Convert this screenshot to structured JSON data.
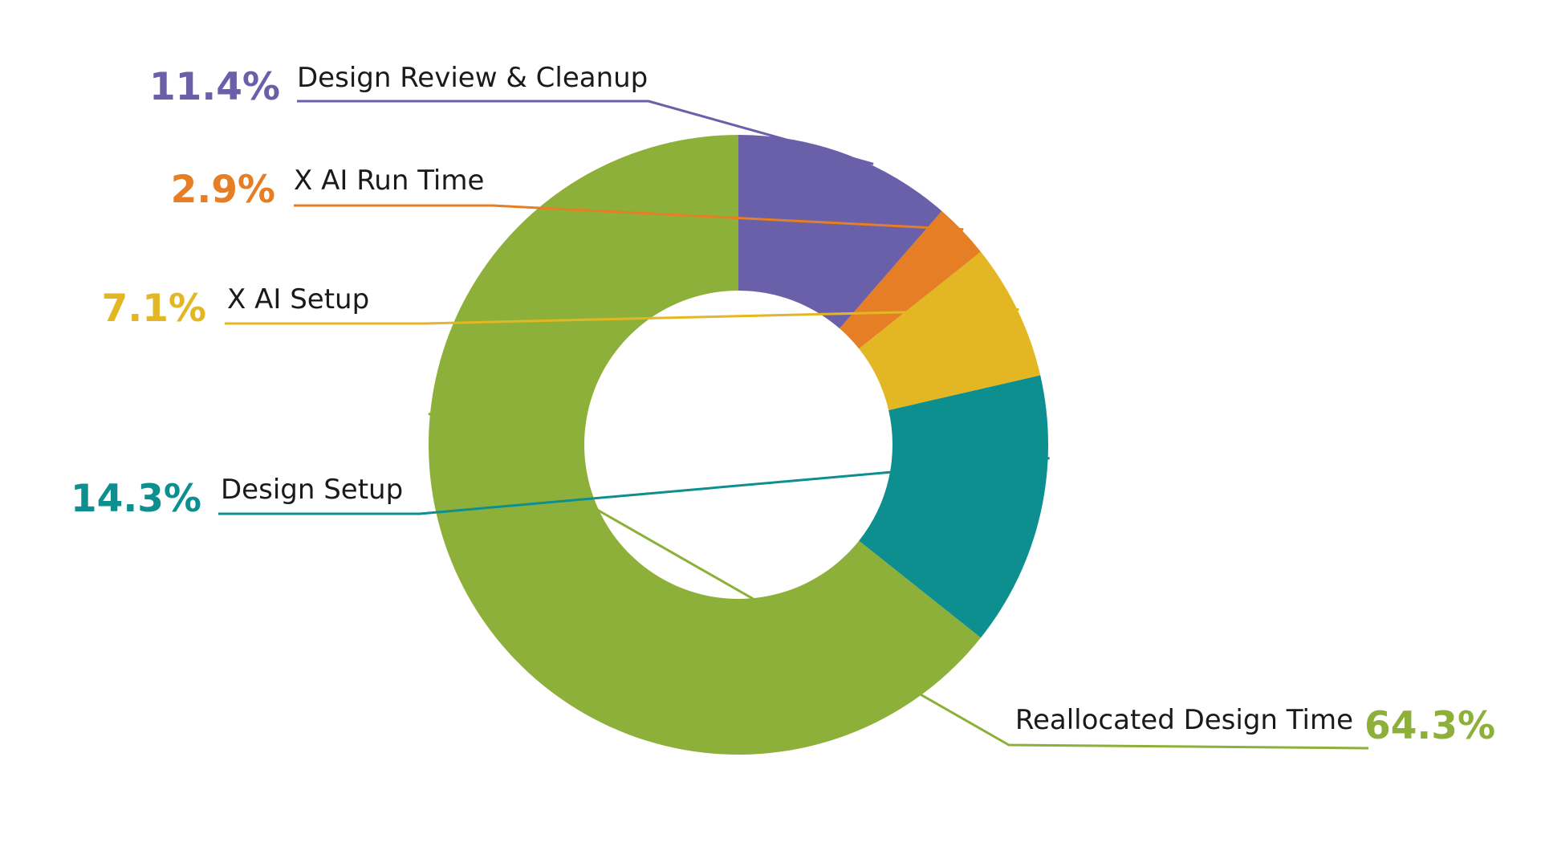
{
  "chart_data": {
    "type": "pie",
    "variant": "donut",
    "start": "top",
    "direction": "counterclockwise",
    "slices": [
      {
        "label": "Reallocated Design Time",
        "value": 64.3,
        "value_label": "64.3%",
        "color": "#8DB03A"
      },
      {
        "label": "Design Setup",
        "value": 14.3,
        "value_label": "14.3%",
        "color": "#0E8F8F"
      },
      {
        "label": "X AI Setup",
        "value": 7.1,
        "value_label": "7.1%",
        "color": "#E3B623"
      },
      {
        "label": "X AI Run Time",
        "value": 2.9,
        "value_label": "2.9%",
        "color": "#E57E25"
      },
      {
        "label": "Design Review & Cleanup",
        "value": 11.4,
        "value_label": "11.4%",
        "color": "#6A5FA9"
      }
    ]
  }
}
